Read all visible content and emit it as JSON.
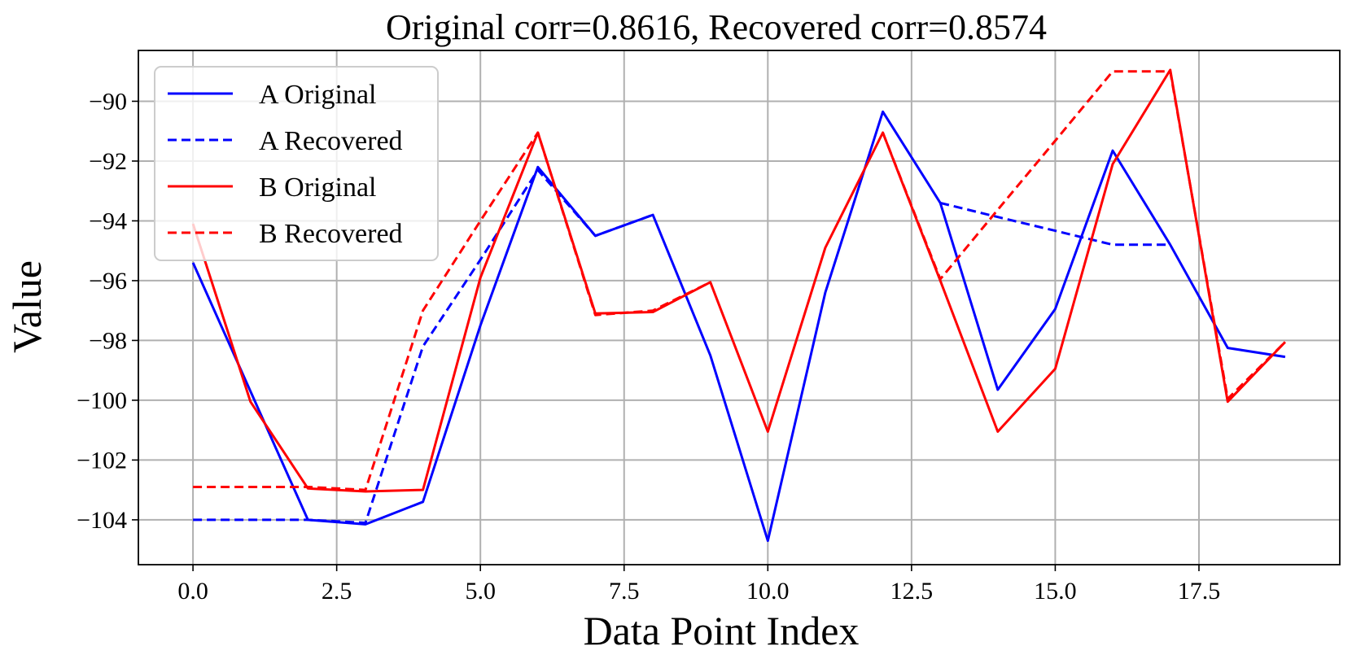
{
  "chart_data": {
    "type": "line",
    "title": "Original corr=0.8616, Recovered corr=0.8574",
    "xlabel": "Data Point Index",
    "ylabel": "Value",
    "xlim": [
      -0.95,
      19.95
    ],
    "ylim": [
      -105.5,
      -88.3
    ],
    "xticks": [
      0.0,
      2.5,
      5.0,
      7.5,
      10.0,
      12.5,
      15.0,
      17.5
    ],
    "xtick_labels": [
      "0.0",
      "2.5",
      "5.0",
      "7.5",
      "10.0",
      "12.5",
      "15.0",
      "17.5"
    ],
    "yticks": [
      -104,
      -102,
      -100,
      -98,
      -96,
      -94,
      -92,
      -90
    ],
    "ytick_labels": [
      "−104",
      "−102",
      "−100",
      "−98",
      "−96",
      "−94",
      "−92",
      "−90"
    ],
    "grid": true,
    "legend_position": "upper-left",
    "x": [
      0,
      1,
      2,
      3,
      4,
      5,
      6,
      7,
      8,
      9,
      10,
      11,
      12,
      13,
      14,
      15,
      16,
      17,
      18,
      19
    ],
    "series": [
      {
        "name": "A Original",
        "color": "#0000ff",
        "style": "solid",
        "values": [
          -95.4,
          -99.7,
          -104.0,
          -104.15,
          -103.4,
          -97.5,
          -92.2,
          -94.5,
          -93.8,
          -98.5,
          -104.7,
          -96.4,
          -90.35,
          -93.4,
          -99.65,
          -96.95,
          -91.65,
          -94.8,
          -98.25,
          -98.55
        ]
      },
      {
        "name": "A Recovered",
        "color": "#0000ff",
        "style": "dashed",
        "values": [
          -104.0,
          -104.0,
          -104.0,
          -104.1,
          -98.2,
          -95.3,
          -92.3,
          -94.5,
          -93.8,
          null,
          null,
          null,
          null,
          -93.4,
          -93.87,
          -94.33,
          -94.8,
          -94.8,
          null,
          null
        ]
      },
      {
        "name": "B Original",
        "color": "#ff0000",
        "style": "solid",
        "values": [
          -94.1,
          -100.05,
          -102.95,
          -103.05,
          -103.0,
          -95.9,
          -91.05,
          -97.1,
          -97.05,
          -96.05,
          -101.05,
          -94.9,
          -91.05,
          -96.0,
          -101.05,
          -98.95,
          -92.1,
          -88.95,
          -100.05,
          -98.05
        ]
      },
      {
        "name": "B Recovered",
        "color": "#ff0000",
        "style": "dashed",
        "values": [
          -102.9,
          -102.9,
          -102.9,
          -103.0,
          -97.0,
          -94.0,
          -91.05,
          -97.15,
          -97.0,
          -96.05,
          null,
          null,
          -91.05,
          -95.95,
          -93.63,
          -91.32,
          -89.0,
          -89.0,
          -99.95,
          -98.05
        ]
      }
    ]
  }
}
